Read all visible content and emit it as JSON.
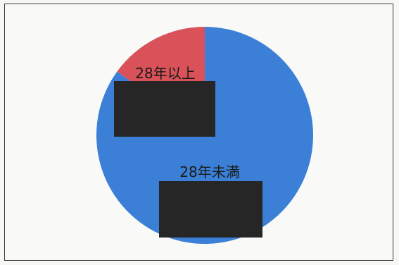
{
  "chart_data": {
    "type": "pie",
    "title": "",
    "slices": [
      {
        "label": "28年未満",
        "value": 85,
        "color": "#3b80d6"
      },
      {
        "label": "28年以上",
        "value": 15,
        "color": "#d9525a"
      }
    ],
    "start_angle_deg": 0,
    "direction": "clockwise",
    "legend": "none",
    "data_labels_redacted": true
  }
}
